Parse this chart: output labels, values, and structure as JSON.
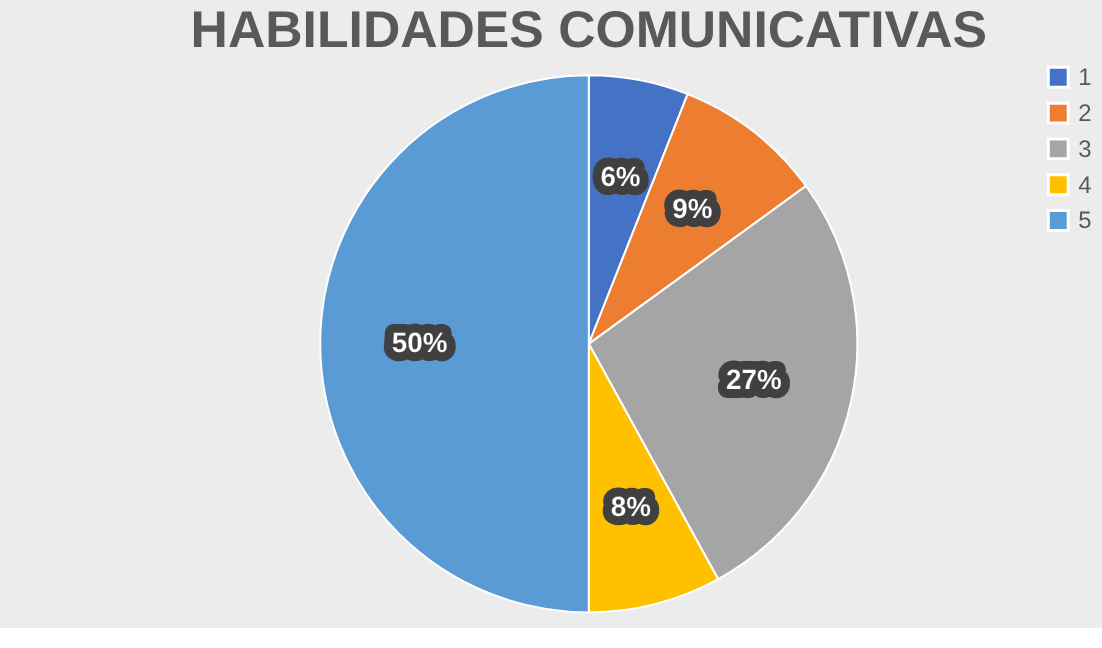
{
  "chart_data": {
    "type": "pie",
    "title": "HABILIDADES COMUNICATIVAS",
    "categories": [
      "1",
      "2",
      "3",
      "4",
      "5"
    ],
    "values": [
      6,
      9,
      27,
      8,
      50
    ],
    "colors": [
      "#4472c4",
      "#ed7d31",
      "#a5a5a5",
      "#ffc000",
      "#5b9bd5"
    ],
    "value_labels": [
      "6%",
      "9%",
      "27%",
      "8%",
      "50%"
    ],
    "legend": "right"
  }
}
